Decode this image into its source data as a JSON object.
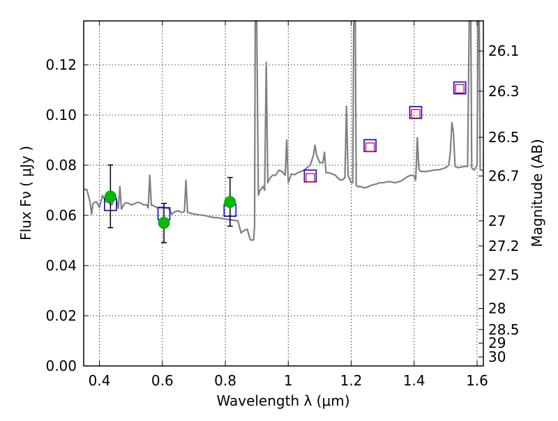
{
  "chart_data": {
    "type": "line",
    "xlabel": "Wavelength  λ (μm)",
    "ylabel": "Flux  Fν  ( μJy )",
    "ylabel_right": "Magnitude (AB)",
    "xlim": [
      0.35,
      1.62
    ],
    "ylim": [
      0.0,
      0.1375
    ],
    "grid": true,
    "x_ticks": [
      {
        "value": 0.4,
        "label": "0.4"
      },
      {
        "value": 0.6,
        "label": "0.6"
      },
      {
        "value": 0.8,
        "label": "0.8"
      },
      {
        "value": 1.0,
        "label": "1"
      },
      {
        "value": 1.2,
        "label": "1.2"
      },
      {
        "value": 1.4,
        "label": "1.4"
      },
      {
        "value": 1.6,
        "label": "1.6"
      }
    ],
    "y_ticks": [
      {
        "value": 0.0,
        "label": "0.00"
      },
      {
        "value": 0.02,
        "label": "0.02"
      },
      {
        "value": 0.04,
        "label": "0.04"
      },
      {
        "value": 0.06,
        "label": "0.06"
      },
      {
        "value": 0.08,
        "label": "0.08"
      },
      {
        "value": 0.1,
        "label": "0.10"
      },
      {
        "value": 0.12,
        "label": "0.12"
      }
    ],
    "right_ticks": [
      {
        "flux": 0.1255,
        "label": "26.1"
      },
      {
        "flux": 0.1095,
        "label": "26.3"
      },
      {
        "flux": 0.0911,
        "label": "26.5"
      },
      {
        "flux": 0.0757,
        "label": "26.7"
      },
      {
        "flux": 0.0578,
        "label": "27"
      },
      {
        "flux": 0.0478,
        "label": "27.2"
      },
      {
        "flux": 0.0362,
        "label": "27.5"
      },
      {
        "flux": 0.0229,
        "label": "28"
      },
      {
        "flux": 0.0145,
        "label": "28.5"
      },
      {
        "flux": 0.0091,
        "label": "29"
      },
      {
        "flux": 0.0036,
        "label": "30"
      }
    ],
    "series": [
      {
        "name": "model spectrum",
        "style": "line",
        "color": "#808080",
        "points": [
          [
            0.35,
            0.0703
          ],
          [
            0.36,
            0.0703
          ],
          [
            0.37,
            0.0655
          ],
          [
            0.375,
            0.0605
          ],
          [
            0.38,
            0.0648
          ],
          [
            0.39,
            0.0655
          ],
          [
            0.4,
            0.0632
          ],
          [
            0.41,
            0.068
          ],
          [
            0.42,
            0.0655
          ],
          [
            0.43,
            0.065
          ],
          [
            0.44,
            0.0642
          ],
          [
            0.45,
            0.0685
          ],
          [
            0.46,
            0.0627
          ],
          [
            0.465,
            0.0715
          ],
          [
            0.47,
            0.0625
          ],
          [
            0.48,
            0.0648
          ],
          [
            0.49,
            0.065
          ],
          [
            0.5,
            0.0642
          ],
          [
            0.51,
            0.0645
          ],
          [
            0.52,
            0.0652
          ],
          [
            0.53,
            0.065
          ],
          [
            0.54,
            0.0642
          ],
          [
            0.55,
            0.0642
          ],
          [
            0.555,
            0.063
          ],
          [
            0.56,
            0.076
          ],
          [
            0.565,
            0.064
          ],
          [
            0.57,
            0.064
          ],
          [
            0.58,
            0.0632
          ],
          [
            0.6,
            0.0632
          ],
          [
            0.62,
            0.0628
          ],
          [
            0.63,
            0.0605
          ],
          [
            0.64,
            0.0615
          ],
          [
            0.65,
            0.0618
          ],
          [
            0.66,
            0.0612
          ],
          [
            0.67,
            0.0615
          ],
          [
            0.675,
            0.074
          ],
          [
            0.68,
            0.0612
          ],
          [
            0.7,
            0.0605
          ],
          [
            0.72,
            0.0602
          ],
          [
            0.74,
            0.0598
          ],
          [
            0.76,
            0.0592
          ],
          [
            0.78,
            0.059
          ],
          [
            0.8,
            0.0585
          ],
          [
            0.82,
            0.0582
          ],
          [
            0.84,
            0.0578
          ],
          [
            0.85,
            0.053
          ],
          [
            0.86,
            0.054
          ],
          [
            0.87,
            0.0545
          ],
          [
            0.875,
            0.052
          ],
          [
            0.88,
            0.0502
          ],
          [
            0.89,
            0.0502
          ],
          [
            0.893,
            0.056
          ],
          [
            0.895,
            0.14
          ],
          [
            0.9,
            0.14
          ],
          [
            0.905,
            0.068
          ],
          [
            0.91,
            0.07
          ],
          [
            0.92,
            0.0715
          ],
          [
            0.925,
            0.07
          ],
          [
            0.93,
            0.121
          ],
          [
            0.935,
            0.073
          ],
          [
            0.94,
            0.0745
          ],
          [
            0.95,
            0.076
          ],
          [
            0.96,
            0.076
          ],
          [
            0.97,
            0.078
          ],
          [
            0.98,
            0.0775
          ],
          [
            0.99,
            0.076
          ],
          [
            0.995,
            0.09
          ],
          [
            1.0,
            0.073
          ],
          [
            1.01,
            0.0765
          ],
          [
            1.02,
            0.0762
          ],
          [
            1.03,
            0.077
          ],
          [
            1.04,
            0.0775
          ],
          [
            1.05,
            0.078
          ],
          [
            1.06,
            0.079
          ],
          [
            1.07,
            0.08
          ],
          [
            1.08,
            0.084
          ],
          [
            1.085,
            0.088
          ],
          [
            1.09,
            0.084
          ],
          [
            1.1,
            0.081
          ],
          [
            1.11,
            0.081
          ],
          [
            1.115,
            0.0852
          ],
          [
            1.12,
            0.077
          ],
          [
            1.13,
            0.077
          ],
          [
            1.14,
            0.0765
          ],
          [
            1.15,
            0.076
          ],
          [
            1.16,
            0.0745
          ],
          [
            1.17,
            0.074
          ],
          [
            1.18,
            0.075
          ],
          [
            1.185,
            0.1035
          ],
          [
            1.19,
            0.076
          ],
          [
            1.2,
            0.073
          ],
          [
            1.205,
            0.073
          ],
          [
            1.208,
            0.14
          ],
          [
            1.213,
            0.14
          ],
          [
            1.216,
            0.072
          ],
          [
            1.22,
            0.0715
          ],
          [
            1.23,
            0.0715
          ],
          [
            1.24,
            0.071
          ],
          [
            1.25,
            0.0712
          ],
          [
            1.26,
            0.0718
          ],
          [
            1.27,
            0.0722
          ],
          [
            1.28,
            0.0725
          ],
          [
            1.29,
            0.073
          ],
          [
            1.3,
            0.073
          ],
          [
            1.32,
            0.0735
          ],
          [
            1.34,
            0.073
          ],
          [
            1.36,
            0.0738
          ],
          [
            1.38,
            0.0755
          ],
          [
            1.39,
            0.076
          ],
          [
            1.4,
            0.0758
          ],
          [
            1.405,
            0.074
          ],
          [
            1.41,
            0.091
          ],
          [
            1.415,
            0.0785
          ],
          [
            1.42,
            0.0775
          ],
          [
            1.44,
            0.0775
          ],
          [
            1.46,
            0.078
          ],
          [
            1.48,
            0.0782
          ],
          [
            1.5,
            0.079
          ],
          [
            1.51,
            0.08
          ],
          [
            1.515,
            0.085
          ],
          [
            1.52,
            0.097
          ],
          [
            1.525,
            0.093
          ],
          [
            1.53,
            0.0795
          ],
          [
            1.54,
            0.079
          ],
          [
            1.56,
            0.0795
          ],
          [
            1.57,
            0.0795
          ],
          [
            1.575,
            0.14
          ],
          [
            1.58,
            0.14
          ],
          [
            1.583,
            0.079
          ],
          [
            1.59,
            0.078
          ],
          [
            1.6,
            0.08
          ],
          [
            1.603,
            0.14
          ],
          [
            1.607,
            0.14
          ],
          [
            1.61,
            0.078
          ],
          [
            1.62,
            0.078
          ]
        ]
      },
      {
        "name": "model photometry (blue squares)",
        "style": "square",
        "color": "#0000ff",
        "points": [
          [
            0.435,
            0.0643
          ],
          [
            0.605,
            0.0607
          ],
          [
            0.815,
            0.062
          ],
          [
            1.07,
            0.0757
          ],
          [
            1.26,
            0.0878
          ],
          [
            1.405,
            0.101
          ],
          [
            1.545,
            0.1108
          ]
        ]
      },
      {
        "name": "observed photometry (red squares)",
        "style": "square-small",
        "color": "#ff0000",
        "points": [
          [
            1.07,
            0.075
          ],
          [
            1.26,
            0.0872
          ],
          [
            1.405,
            0.1005
          ],
          [
            1.545,
            0.1105
          ]
        ]
      },
      {
        "name": "observed photometry (green circles)",
        "style": "circle",
        "color": "#00bb00",
        "points": [
          [
            0.435,
            0.0675
          ],
          [
            0.605,
            0.057
          ],
          [
            0.815,
            0.0653
          ]
        ],
        "error_bars": [
          [
            0.0551,
            0.0801
          ],
          [
            0.0491,
            0.0648
          ],
          [
            0.0557,
            0.0751
          ]
        ]
      }
    ]
  }
}
